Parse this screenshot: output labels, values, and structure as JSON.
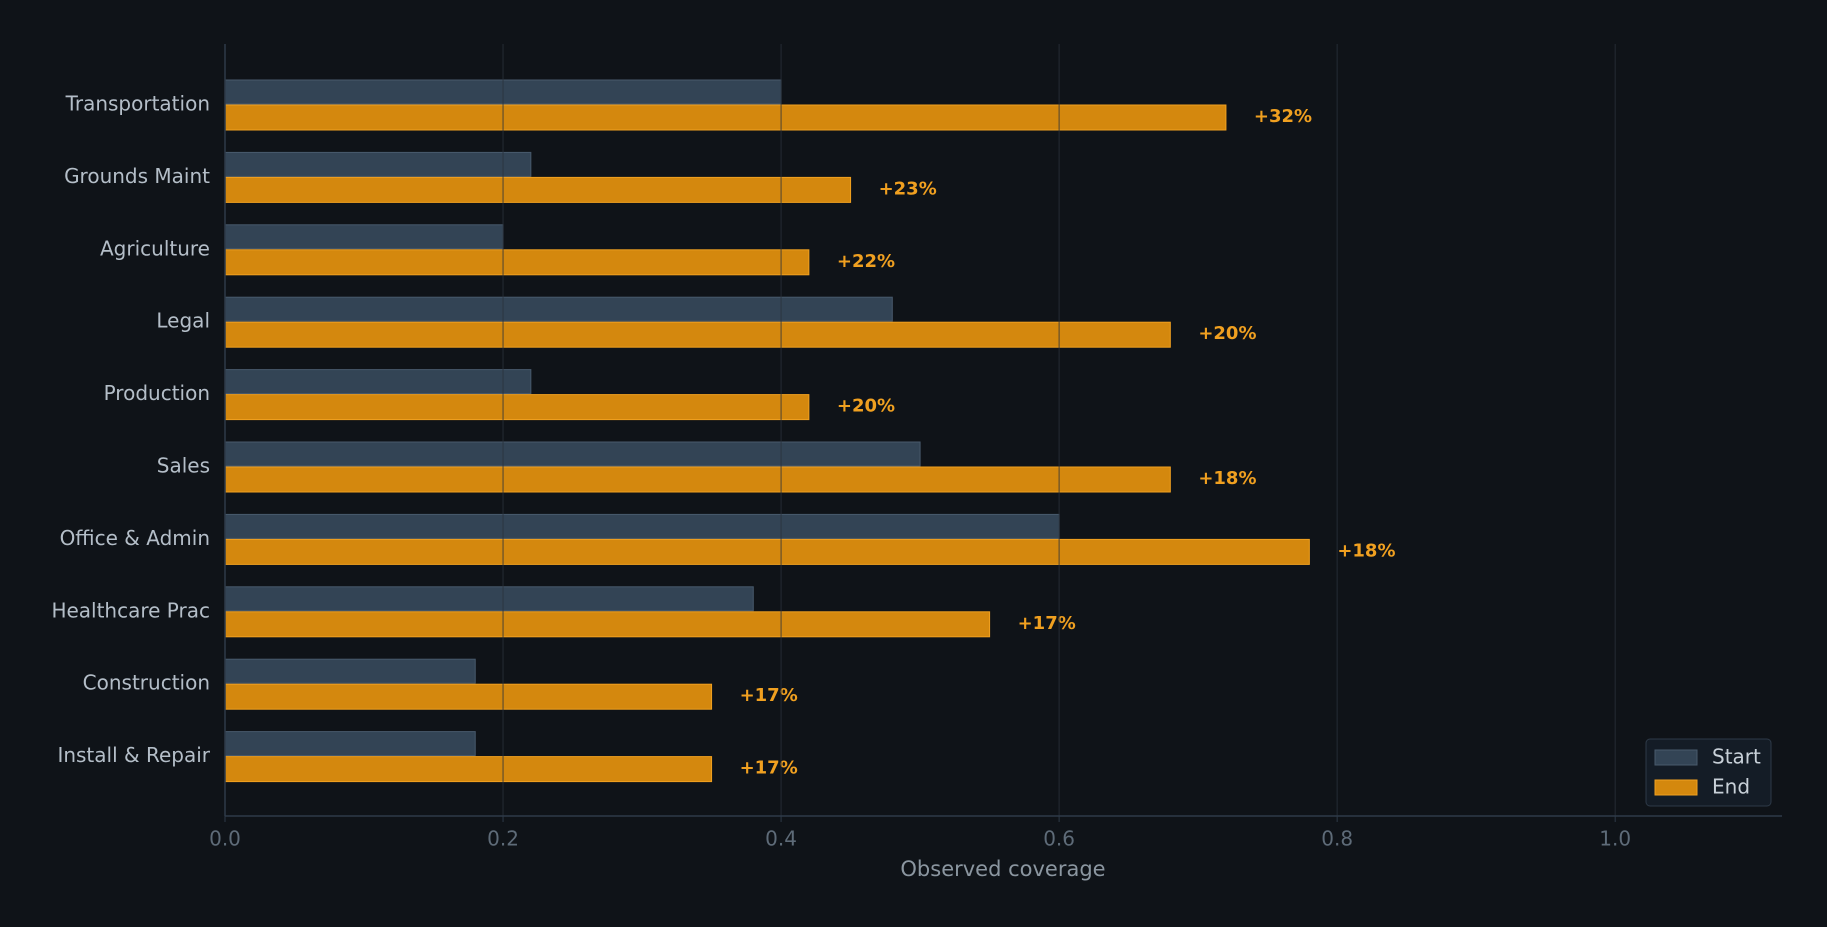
{
  "chart_data": {
    "type": "grouped-barh",
    "categories": [
      "Transportation",
      "Grounds Maint",
      "Agriculture",
      "Legal",
      "Production",
      "Sales",
      "Office & Admin",
      "Healthcare Prac",
      "Construction",
      "Install & Repair"
    ],
    "series": [
      {
        "name": "Start",
        "color": "#334455",
        "values": [
          0.4,
          0.22,
          0.2,
          0.48,
          0.22,
          0.5,
          0.6,
          0.38,
          0.18,
          0.18
        ]
      },
      {
        "name": "End",
        "color": "#d4880e",
        "values": [
          0.72,
          0.45,
          0.42,
          0.68,
          0.42,
          0.68,
          0.78,
          0.55,
          0.35,
          0.35
        ]
      }
    ],
    "annotations": [
      "+32%",
      "+23%",
      "+22%",
      "+20%",
      "+20%",
      "+18%",
      "+18%",
      "+17%",
      "+17%",
      "+17%"
    ],
    "xlabel": "Observed coverage",
    "xlim": [
      0,
      1.12
    ],
    "xticks": [
      {
        "value": 0,
        "label": "0.0"
      },
      0.2,
      0.4,
      0.6,
      0.8,
      {
        "value": 1,
        "label": "1.0"
      }
    ],
    "grid": true,
    "legend": "lower right"
  }
}
